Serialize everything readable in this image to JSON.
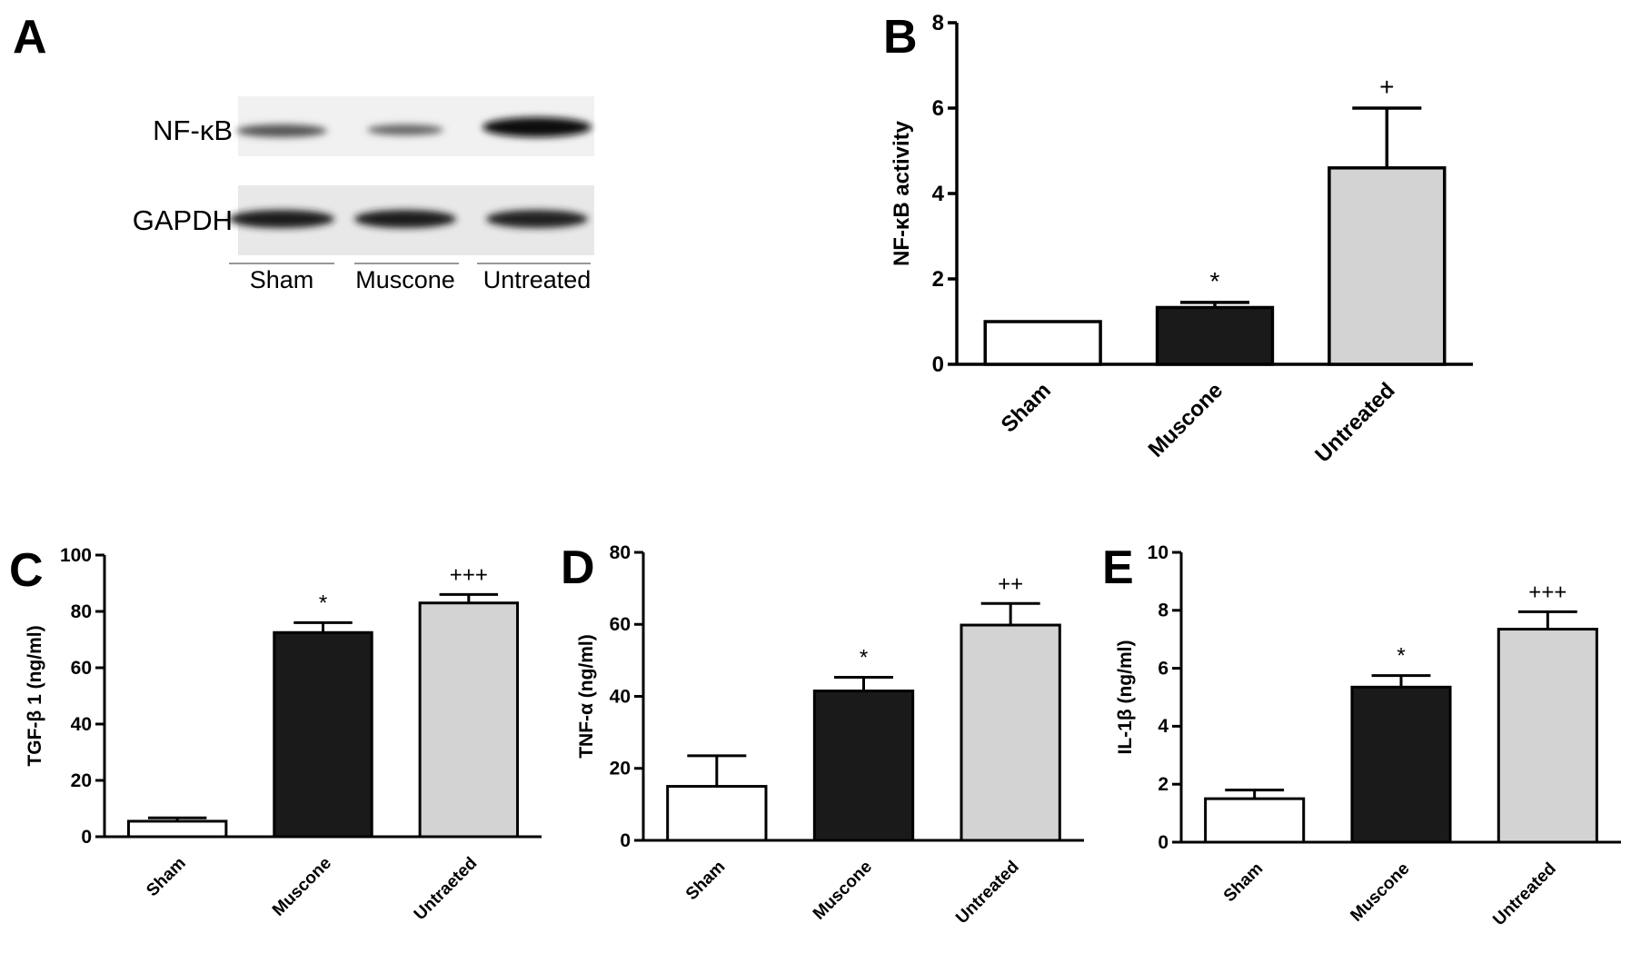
{
  "chart_data": [
    {
      "type": "blot",
      "panel_label": "A",
      "rows": [
        "NF-κB",
        "GAPDH"
      ],
      "categories": [
        "Sham",
        "Muscone",
        "Untreated"
      ]
    },
    {
      "type": "bar",
      "panel_label": "B",
      "ylabel": "NF-κB activity",
      "categories": [
        "Sham",
        "Muscone",
        "Untreated"
      ],
      "values": [
        1.0,
        1.33,
        4.6
      ],
      "errors": [
        0,
        0.12,
        1.4
      ],
      "annotations": [
        null,
        "*",
        "+"
      ],
      "colors": [
        "#ffffff",
        "#1a1a1a",
        "#d3d3d3"
      ],
      "ylim": [
        0,
        8
      ],
      "yticks": [
        0,
        2,
        4,
        6,
        8
      ]
    },
    {
      "type": "bar",
      "panel_label": "C",
      "ylabel": "TGF-β 1 (ng/ml)",
      "categories": [
        "Sham",
        "Muscone",
        "Untraeted"
      ],
      "values": [
        5.5,
        72.5,
        83
      ],
      "errors": [
        1.2,
        3.5,
        3
      ],
      "annotations": [
        null,
        "*",
        "+++"
      ],
      "colors": [
        "#ffffff",
        "#1a1a1a",
        "#d3d3d3"
      ],
      "ylim": [
        0,
        100
      ],
      "yticks": [
        0,
        20,
        40,
        60,
        80,
        100
      ]
    },
    {
      "type": "bar",
      "panel_label": "D",
      "ylabel": "TNF-α (ng/ml)",
      "categories": [
        "Sham",
        "Muscone",
        "Untreated"
      ],
      "values": [
        15,
        41.5,
        59.8
      ],
      "errors": [
        8.5,
        3.8,
        6
      ],
      "annotations": [
        null,
        "*",
        "++"
      ],
      "colors": [
        "#ffffff",
        "#1a1a1a",
        "#d3d3d3"
      ],
      "ylim": [
        0,
        80
      ],
      "yticks": [
        0,
        20,
        40,
        60,
        80
      ]
    },
    {
      "type": "bar",
      "panel_label": "E",
      "ylabel": "IL-1β (ng/ml)",
      "categories": [
        "Sham",
        "Muscone",
        "Untreated"
      ],
      "values": [
        1.5,
        5.35,
        7.35
      ],
      "errors": [
        0.3,
        0.4,
        0.6
      ],
      "annotations": [
        null,
        "*",
        "+++"
      ],
      "colors": [
        "#ffffff",
        "#1a1a1a",
        "#d3d3d3"
      ],
      "ylim": [
        0,
        10
      ],
      "yticks": [
        0,
        2,
        4,
        6,
        8,
        10
      ]
    }
  ]
}
